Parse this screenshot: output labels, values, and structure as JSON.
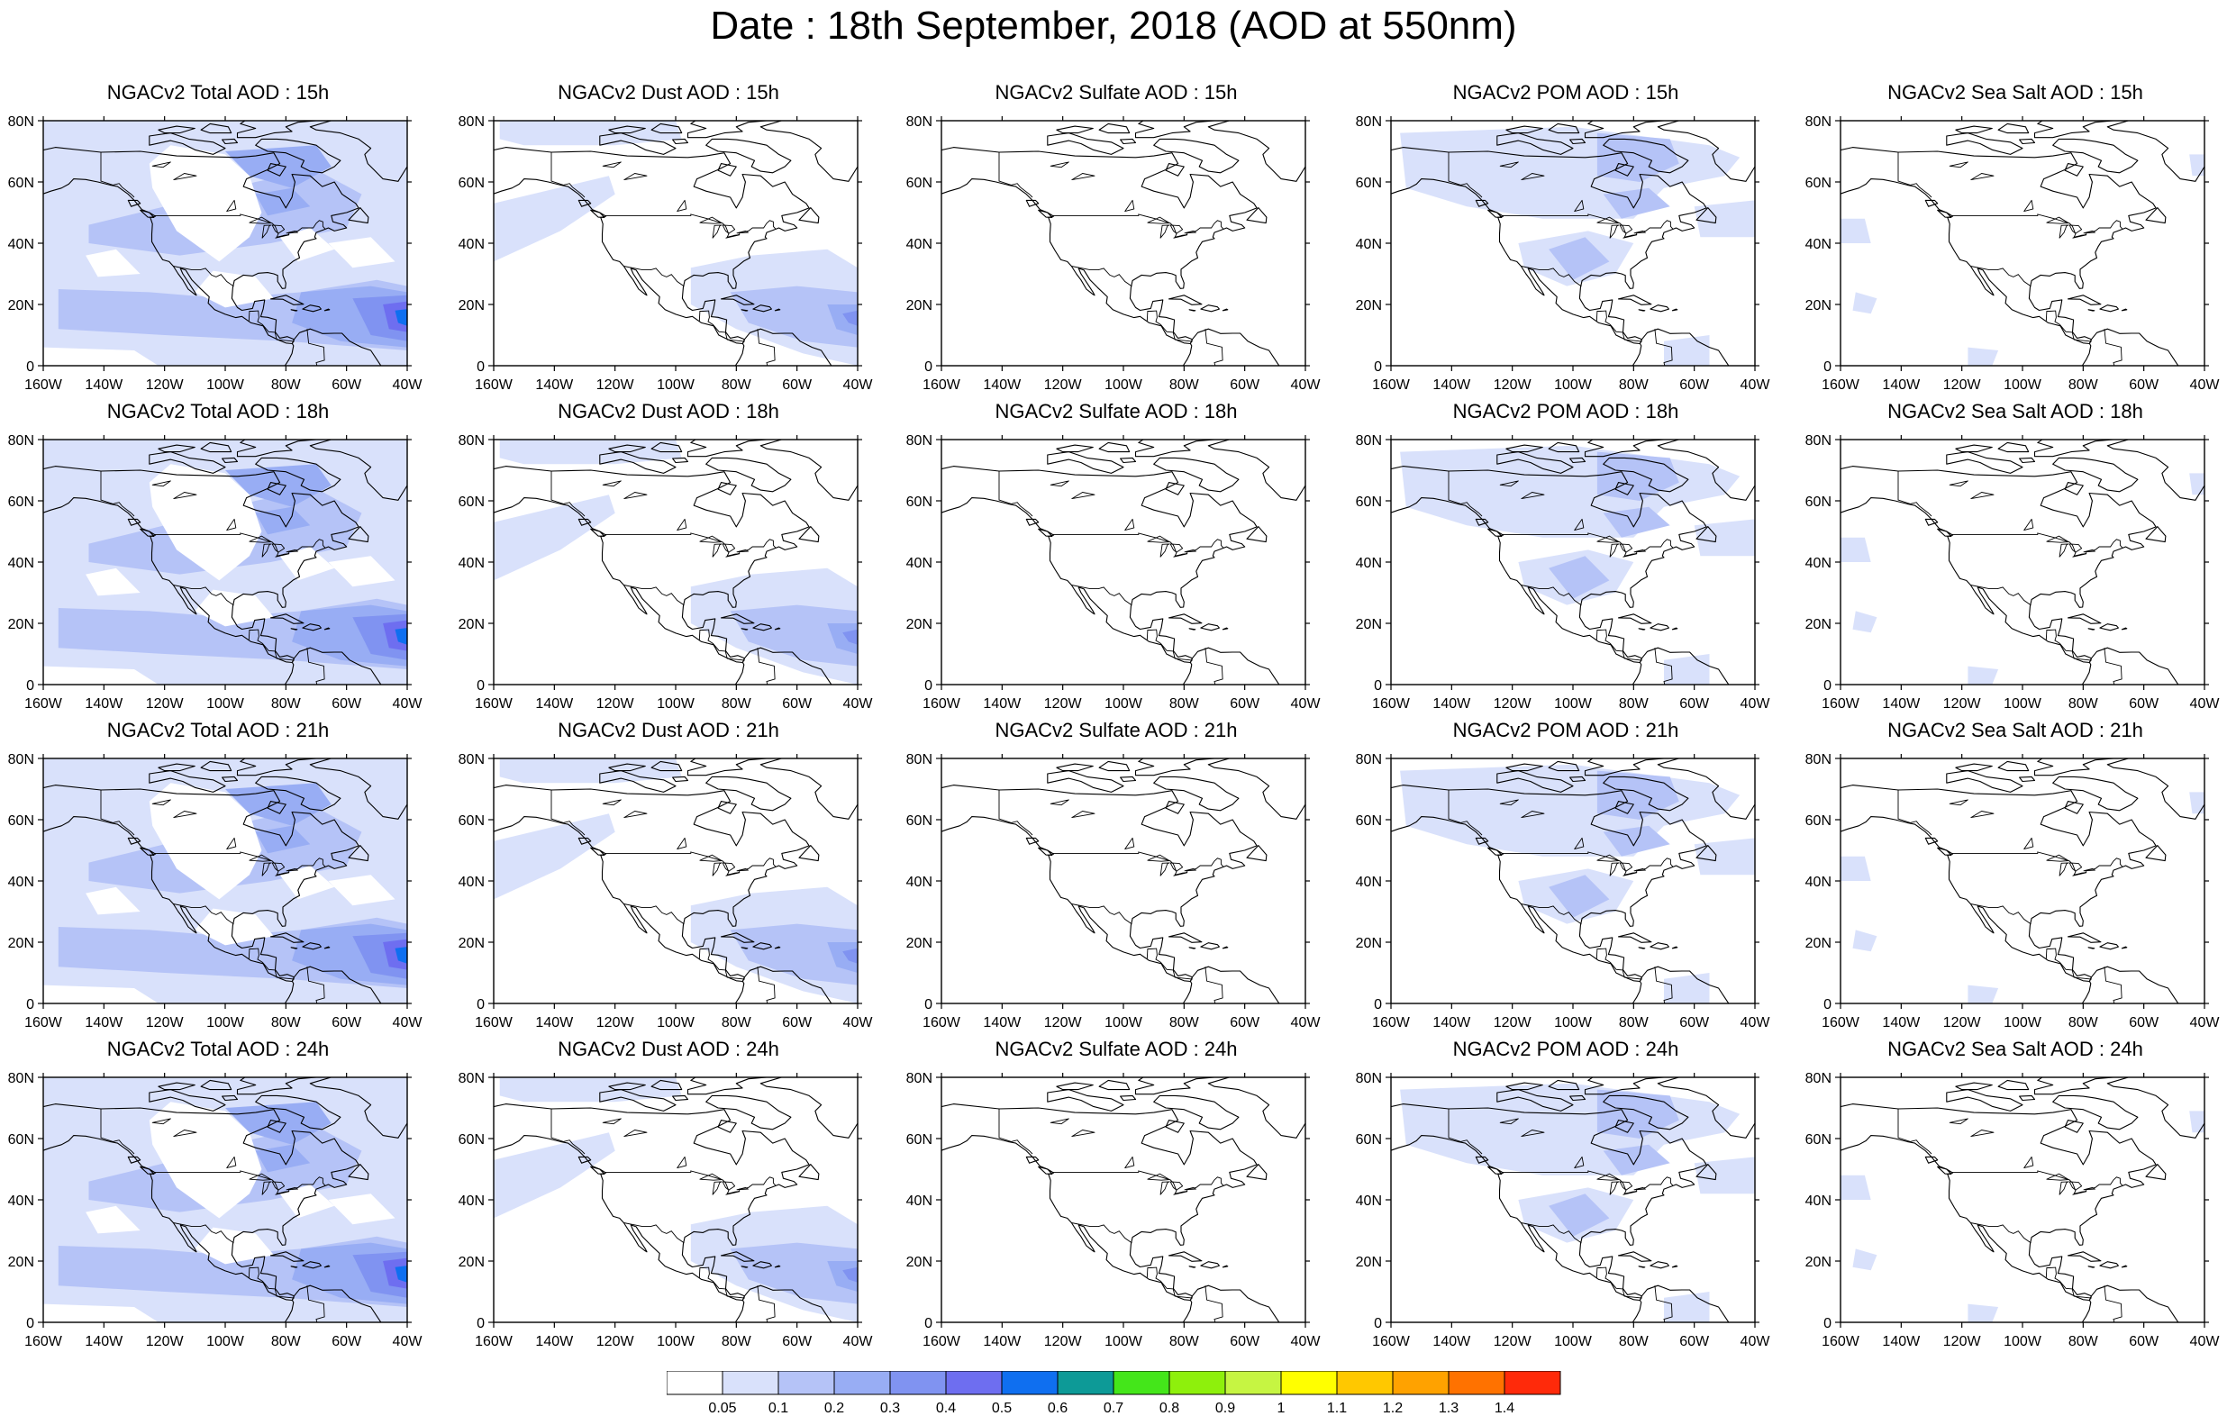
{
  "title": "Date : 18th September, 2018 (AOD at 550nm)",
  "map": {
    "lon_ticks": [
      "160W",
      "140W",
      "120W",
      "100W",
      "80W",
      "60W",
      "40W"
    ],
    "lat_ticks": [
      "80N",
      "60N",
      "40N",
      "20N",
      "0"
    ],
    "extent": {
      "lon": [
        -160,
        -40
      ],
      "lat": [
        0,
        80
      ]
    }
  },
  "panels": [
    {
      "title": "NGACv2 Total AOD : 15h",
      "species": "total",
      "hour": "15h"
    },
    {
      "title": "NGACv2 Dust AOD : 15h",
      "species": "dust",
      "hour": "15h"
    },
    {
      "title": "NGACv2 Sulfate AOD : 15h",
      "species": "sulfate",
      "hour": "15h"
    },
    {
      "title": "NGACv2 POM AOD : 15h",
      "species": "pom",
      "hour": "15h"
    },
    {
      "title": "NGACv2 Sea Salt AOD : 15h",
      "species": "seasalt",
      "hour": "15h"
    },
    {
      "title": "NGACv2 Total AOD : 18h",
      "species": "total",
      "hour": "18h"
    },
    {
      "title": "NGACv2 Dust AOD : 18h",
      "species": "dust",
      "hour": "18h"
    },
    {
      "title": "NGACv2 Sulfate AOD : 18h",
      "species": "sulfate",
      "hour": "18h"
    },
    {
      "title": "NGACv2 POM AOD : 18h",
      "species": "pom",
      "hour": "18h"
    },
    {
      "title": "NGACv2 Sea Salt AOD : 18h",
      "species": "seasalt",
      "hour": "18h"
    },
    {
      "title": "NGACv2 Total AOD : 21h",
      "species": "total",
      "hour": "21h"
    },
    {
      "title": "NGACv2 Dust AOD : 21h",
      "species": "dust",
      "hour": "21h"
    },
    {
      "title": "NGACv2 Sulfate AOD : 21h",
      "species": "sulfate",
      "hour": "21h"
    },
    {
      "title": "NGACv2 POM AOD : 21h",
      "species": "pom",
      "hour": "21h"
    },
    {
      "title": "NGACv2 Sea Salt AOD : 21h",
      "species": "seasalt",
      "hour": "21h"
    },
    {
      "title": "NGACv2 Total AOD : 24h",
      "species": "total",
      "hour": "24h"
    },
    {
      "title": "NGACv2 Dust AOD : 24h",
      "species": "dust",
      "hour": "24h"
    },
    {
      "title": "NGACv2 Sulfate AOD : 24h",
      "species": "sulfate",
      "hour": "24h"
    },
    {
      "title": "NGACv2 POM AOD : 24h",
      "species": "pom",
      "hour": "24h"
    },
    {
      "title": "NGACv2 Sea Salt  AOD : 24h",
      "species": "seasalt",
      "hour": "24h"
    }
  ],
  "colorbar": {
    "labels": [
      "0.05",
      "0.1",
      "0.2",
      "0.3",
      "0.4",
      "0.5",
      "0.6",
      "0.7",
      "0.8",
      "0.9",
      "1",
      "1.1",
      "1.2",
      "1.3",
      "1.4"
    ],
    "colors": [
      "#ffffff",
      "#d9e1fb",
      "#b5c3f7",
      "#98adf4",
      "#8093f1",
      "#6e6ef0",
      "#0f6ff0",
      "#0d9a97",
      "#44e61a",
      "#8ef00c",
      "#c6f542",
      "#ffff00",
      "#ffc800",
      "#ffa200",
      "#ff7200",
      "#ff2a0a"
    ]
  }
}
